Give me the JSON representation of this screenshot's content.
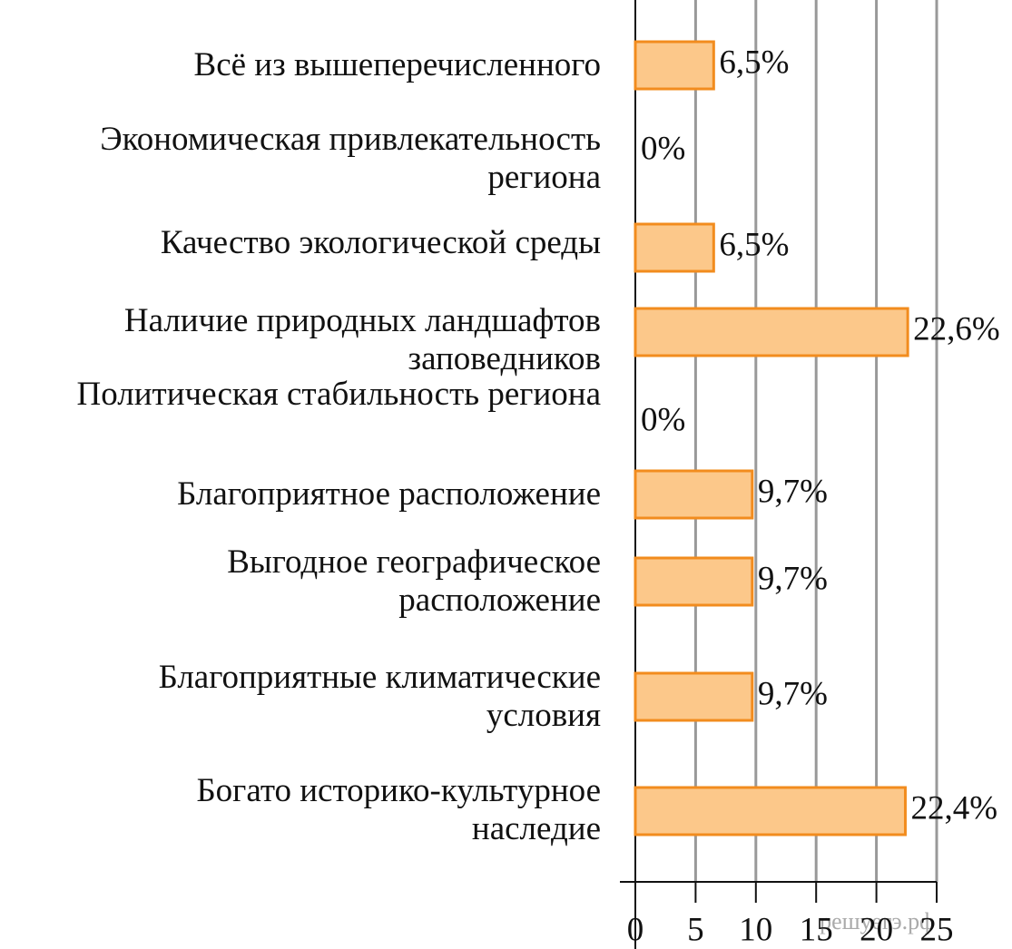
{
  "chart_data": {
    "type": "bar",
    "orientation": "horizontal",
    "categories": [
      "Всё из вышеперечисленного",
      "Экономическая привлекательность\nрегиона",
      "Качество экологической среды",
      "Наличие природных ландшафтов\nзаповедников",
      "Политическая стабильность региона",
      "Благоприятное расположение",
      "Выгодное географическое\nрасположение",
      "Благоприятные климатические\nусловия",
      "Богато историко-культурное\nнаследие"
    ],
    "values": [
      6.5,
      0,
      6.5,
      22.6,
      0,
      9.7,
      9.7,
      9.7,
      22.4
    ],
    "value_labels": [
      "6,5%",
      "0%",
      "6,5%",
      "22,6%",
      "0%",
      "9,7%",
      "9,7%",
      "9,7%",
      "22,4%"
    ],
    "color": "#fcc88a",
    "edge_color": "#f28c1e",
    "xlim": [
      0,
      25
    ],
    "xticks": [
      0,
      5,
      10,
      15,
      20,
      25
    ],
    "grid": true,
    "watermark": "решуегэ.рф"
  }
}
